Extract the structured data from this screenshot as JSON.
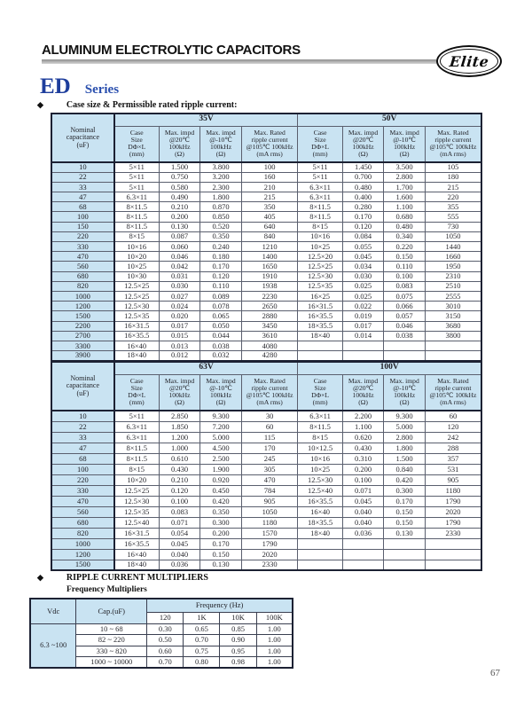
{
  "page": {
    "header_title": "ALUMINUM ELECTROLYTIC CAPACITORS",
    "logo_text": "Elite",
    "series_code": "ED",
    "series_label": "Series",
    "bullet": "◆",
    "section1_title": "Case size & Permissible rated ripple current:",
    "section2_title": "RIPPLE CURRENT MULTIPLIERS",
    "section2_subtitle": "Frequency Multipliers",
    "page_number": "67"
  },
  "colors": {
    "accent_blue": "#1e3e9c",
    "table_header_bg": "#c9e3f2",
    "border_dark": "#1c2133",
    "gray_bar": "#8e8e8e"
  },
  "ripple_tables": [
    {
      "col0_header": "Nominal\ncapacitance\n(uF)",
      "groups": [
        "35V",
        "50V"
      ],
      "sub_headers": [
        "Case\nSize\nDΦ×L\n(mm)",
        "Max. impd\n@20℃\n100kHz\n(Ω)",
        "Max. impd\n@-10℃\n100kHz\n(Ω)",
        "Max. Rated\nripple current\n@105℃ 100kHz\n(mA rms)"
      ],
      "rows": [
        {
          "cap": "10",
          "v1": [
            "5×11",
            "1.500",
            "3.800",
            "100"
          ],
          "v2": [
            "5×11",
            "1.450",
            "3.500",
            "105"
          ]
        },
        {
          "cap": "22",
          "v1": [
            "5×11",
            "0.750",
            "3.200",
            "160"
          ],
          "v2": [
            "5×11",
            "0.700",
            "2.800",
            "180"
          ]
        },
        {
          "cap": "33",
          "v1": [
            "5×11",
            "0.580",
            "2.300",
            "210"
          ],
          "v2": [
            "6.3×11",
            "0.480",
            "1.700",
            "215"
          ]
        },
        {
          "cap": "47",
          "v1": [
            "6.3×11",
            "0.490",
            "1.800",
            "215"
          ],
          "v2": [
            "6.3×11",
            "0.400",
            "1.600",
            "220"
          ]
        },
        {
          "cap": "68",
          "v1": [
            "8×11.5",
            "0.210",
            "0.870",
            "350"
          ],
          "v2": [
            "8×11.5",
            "0.280",
            "1.100",
            "355"
          ]
        },
        {
          "cap": "100",
          "v1": [
            "8×11.5",
            "0.200",
            "0.850",
            "405"
          ],
          "v2": [
            "8×11.5",
            "0.170",
            "0.680",
            "555"
          ]
        },
        {
          "cap": "150",
          "v1": [
            "8×11.5",
            "0.130",
            "0.520",
            "640"
          ],
          "v2": [
            "8×15",
            "0.120",
            "0.480",
            "730"
          ]
        },
        {
          "cap": "220",
          "v1": [
            "8×15",
            "0.087",
            "0.350",
            "840"
          ],
          "v2": [
            "10×16",
            "0.084",
            "0.340",
            "1050"
          ]
        },
        {
          "cap": "330",
          "v1": [
            "10×16",
            "0.060",
            "0.240",
            "1210"
          ],
          "v2": [
            "10×25",
            "0.055",
            "0.220",
            "1440"
          ]
        },
        {
          "cap": "470",
          "v1": [
            "10×20",
            "0.046",
            "0.180",
            "1400"
          ],
          "v2": [
            "12.5×20",
            "0.045",
            "0.150",
            "1660"
          ]
        },
        {
          "cap": "560",
          "v1": [
            "10×25",
            "0.042",
            "0.170",
            "1650"
          ],
          "v2": [
            "12.5×25",
            "0.034",
            "0.110",
            "1950"
          ]
        },
        {
          "cap": "680",
          "v1": [
            "10×30",
            "0.031",
            "0.120",
            "1910"
          ],
          "v2": [
            "12.5×30",
            "0.030",
            "0.100",
            "2310"
          ]
        },
        {
          "cap": "820",
          "v1": [
            "12.5×25",
            "0.030",
            "0.110",
            "1938"
          ],
          "v2": [
            "12.5×35",
            "0.025",
            "0.083",
            "2510"
          ]
        },
        {
          "cap": "1000",
          "v1": [
            "12.5×25",
            "0.027",
            "0.089",
            "2230"
          ],
          "v2": [
            "16×25",
            "0.025",
            "0.075",
            "2555"
          ]
        },
        {
          "cap": "1200",
          "v1": [
            "12.5×30",
            "0.024",
            "0.078",
            "2650"
          ],
          "v2": [
            "16×31.5",
            "0.022",
            "0.066",
            "3010"
          ]
        },
        {
          "cap": "1500",
          "v1": [
            "12.5×35",
            "0.020",
            "0.065",
            "2880"
          ],
          "v2": [
            "16×35.5",
            "0.019",
            "0.057",
            "3150"
          ]
        },
        {
          "cap": "2200",
          "v1": [
            "16×31.5",
            "0.017",
            "0.050",
            "3450"
          ],
          "v2": [
            "18×35.5",
            "0.017",
            "0.046",
            "3680"
          ]
        },
        {
          "cap": "2700",
          "v1": [
            "16×35.5",
            "0.015",
            "0.044",
            "3610"
          ],
          "v2": [
            "18×40",
            "0.014",
            "0.038",
            "3800"
          ]
        },
        {
          "cap": "3300",
          "v1": [
            "16×40",
            "0.013",
            "0.038",
            "4080"
          ],
          "v2": [
            "",
            "",
            "",
            ""
          ]
        },
        {
          "cap": "3900",
          "v1": [
            "18×40",
            "0.012",
            "0.032",
            "4280"
          ],
          "v2": [
            "",
            "",
            "",
            ""
          ]
        }
      ]
    },
    {
      "col0_header": "Nominal\ncapacitance\n(uF)",
      "groups": [
        "63V",
        "100V"
      ],
      "sub_headers": [
        "Case\nSize\nDΦ×L\n(mm)",
        "Max. impd\n@20℃\n100kHz\n(Ω)",
        "Max. impd\n@-10℃\n100kHz\n(Ω)",
        "Max. Rated\nripple current\n@105℃ 100kHz\n(mA rms)"
      ],
      "rows": [
        {
          "cap": "10",
          "v1": [
            "5×11",
            "2.850",
            "9.300",
            "30"
          ],
          "v2": [
            "6.3×11",
            "2.200",
            "9.300",
            "60"
          ]
        },
        {
          "cap": "22",
          "v1": [
            "6.3×11",
            "1.850",
            "7.200",
            "60"
          ],
          "v2": [
            "8×11.5",
            "1.100",
            "5.000",
            "120"
          ]
        },
        {
          "cap": "33",
          "v1": [
            "6.3×11",
            "1.200",
            "5.000",
            "115"
          ],
          "v2": [
            "8×15",
            "0.620",
            "2.800",
            "242"
          ]
        },
        {
          "cap": "47",
          "v1": [
            "8×11.5",
            "1.000",
            "4.500",
            "170"
          ],
          "v2": [
            "10×12.5",
            "0.430",
            "1.800",
            "288"
          ]
        },
        {
          "cap": "68",
          "v1": [
            "8×11.5",
            "0.610",
            "2.500",
            "245"
          ],
          "v2": [
            "10×16",
            "0.310",
            "1.500",
            "357"
          ]
        },
        {
          "cap": "100",
          "v1": [
            "8×15",
            "0.430",
            "1.900",
            "305"
          ],
          "v2": [
            "10×25",
            "0.200",
            "0.840",
            "531"
          ]
        },
        {
          "cap": "220",
          "v1": [
            "10×20",
            "0.210",
            "0.920",
            "470"
          ],
          "v2": [
            "12.5×30",
            "0.100",
            "0.420",
            "905"
          ]
        },
        {
          "cap": "330",
          "v1": [
            "12.5×25",
            "0.120",
            "0.450",
            "784"
          ],
          "v2": [
            "12.5×40",
            "0.071",
            "0.300",
            "1180"
          ]
        },
        {
          "cap": "470",
          "v1": [
            "12.5×30",
            "0.100",
            "0.420",
            "905"
          ],
          "v2": [
            "16×35.5",
            "0.045",
            "0.170",
            "1790"
          ]
        },
        {
          "cap": "560",
          "v1": [
            "12.5×35",
            "0.083",
            "0.350",
            "1050"
          ],
          "v2": [
            "16×40",
            "0.040",
            "0.150",
            "2020"
          ]
        },
        {
          "cap": "680",
          "v1": [
            "12.5×40",
            "0.071",
            "0.300",
            "1180"
          ],
          "v2": [
            "18×35.5",
            "0.040",
            "0.150",
            "1790"
          ]
        },
        {
          "cap": "820",
          "v1": [
            "16×31.5",
            "0.054",
            "0.200",
            "1570"
          ],
          "v2": [
            "18×40",
            "0.036",
            "0.130",
            "2330"
          ]
        },
        {
          "cap": "1000",
          "v1": [
            "16×35.5",
            "0.045",
            "0.170",
            "1790"
          ],
          "v2": [
            "",
            "",
            "",
            ""
          ]
        },
        {
          "cap": "1200",
          "v1": [
            "16×40",
            "0.040",
            "0.150",
            "2020"
          ],
          "v2": [
            "",
            "",
            "",
            ""
          ]
        },
        {
          "cap": "1500",
          "v1": [
            "18×40",
            "0.036",
            "0.130",
            "2330"
          ],
          "v2": [
            "",
            "",
            "",
            ""
          ]
        }
      ]
    }
  ],
  "freq_table": {
    "vdc_header": "Vdc",
    "cap_header": "Cap.(uF)",
    "freq_header": "Frequency (Hz)",
    "freq_cols": [
      "120",
      "1K",
      "10K",
      "100K"
    ],
    "vdc_value": "6.3 ~100",
    "rows": [
      {
        "cap": "10 ~ 68",
        "values": [
          "0.30",
          "0.65",
          "0.85",
          "1.00"
        ]
      },
      {
        "cap": "82 ~ 220",
        "values": [
          "0.50",
          "0.70",
          "0.90",
          "1.00"
        ]
      },
      {
        "cap": "330 ~ 820",
        "values": [
          "0.60",
          "0.75",
          "0.95",
          "1.00"
        ]
      },
      {
        "cap": "1000 ~ 10000",
        "values": [
          "0.70",
          "0.80",
          "0.98",
          "1.00"
        ]
      }
    ]
  }
}
